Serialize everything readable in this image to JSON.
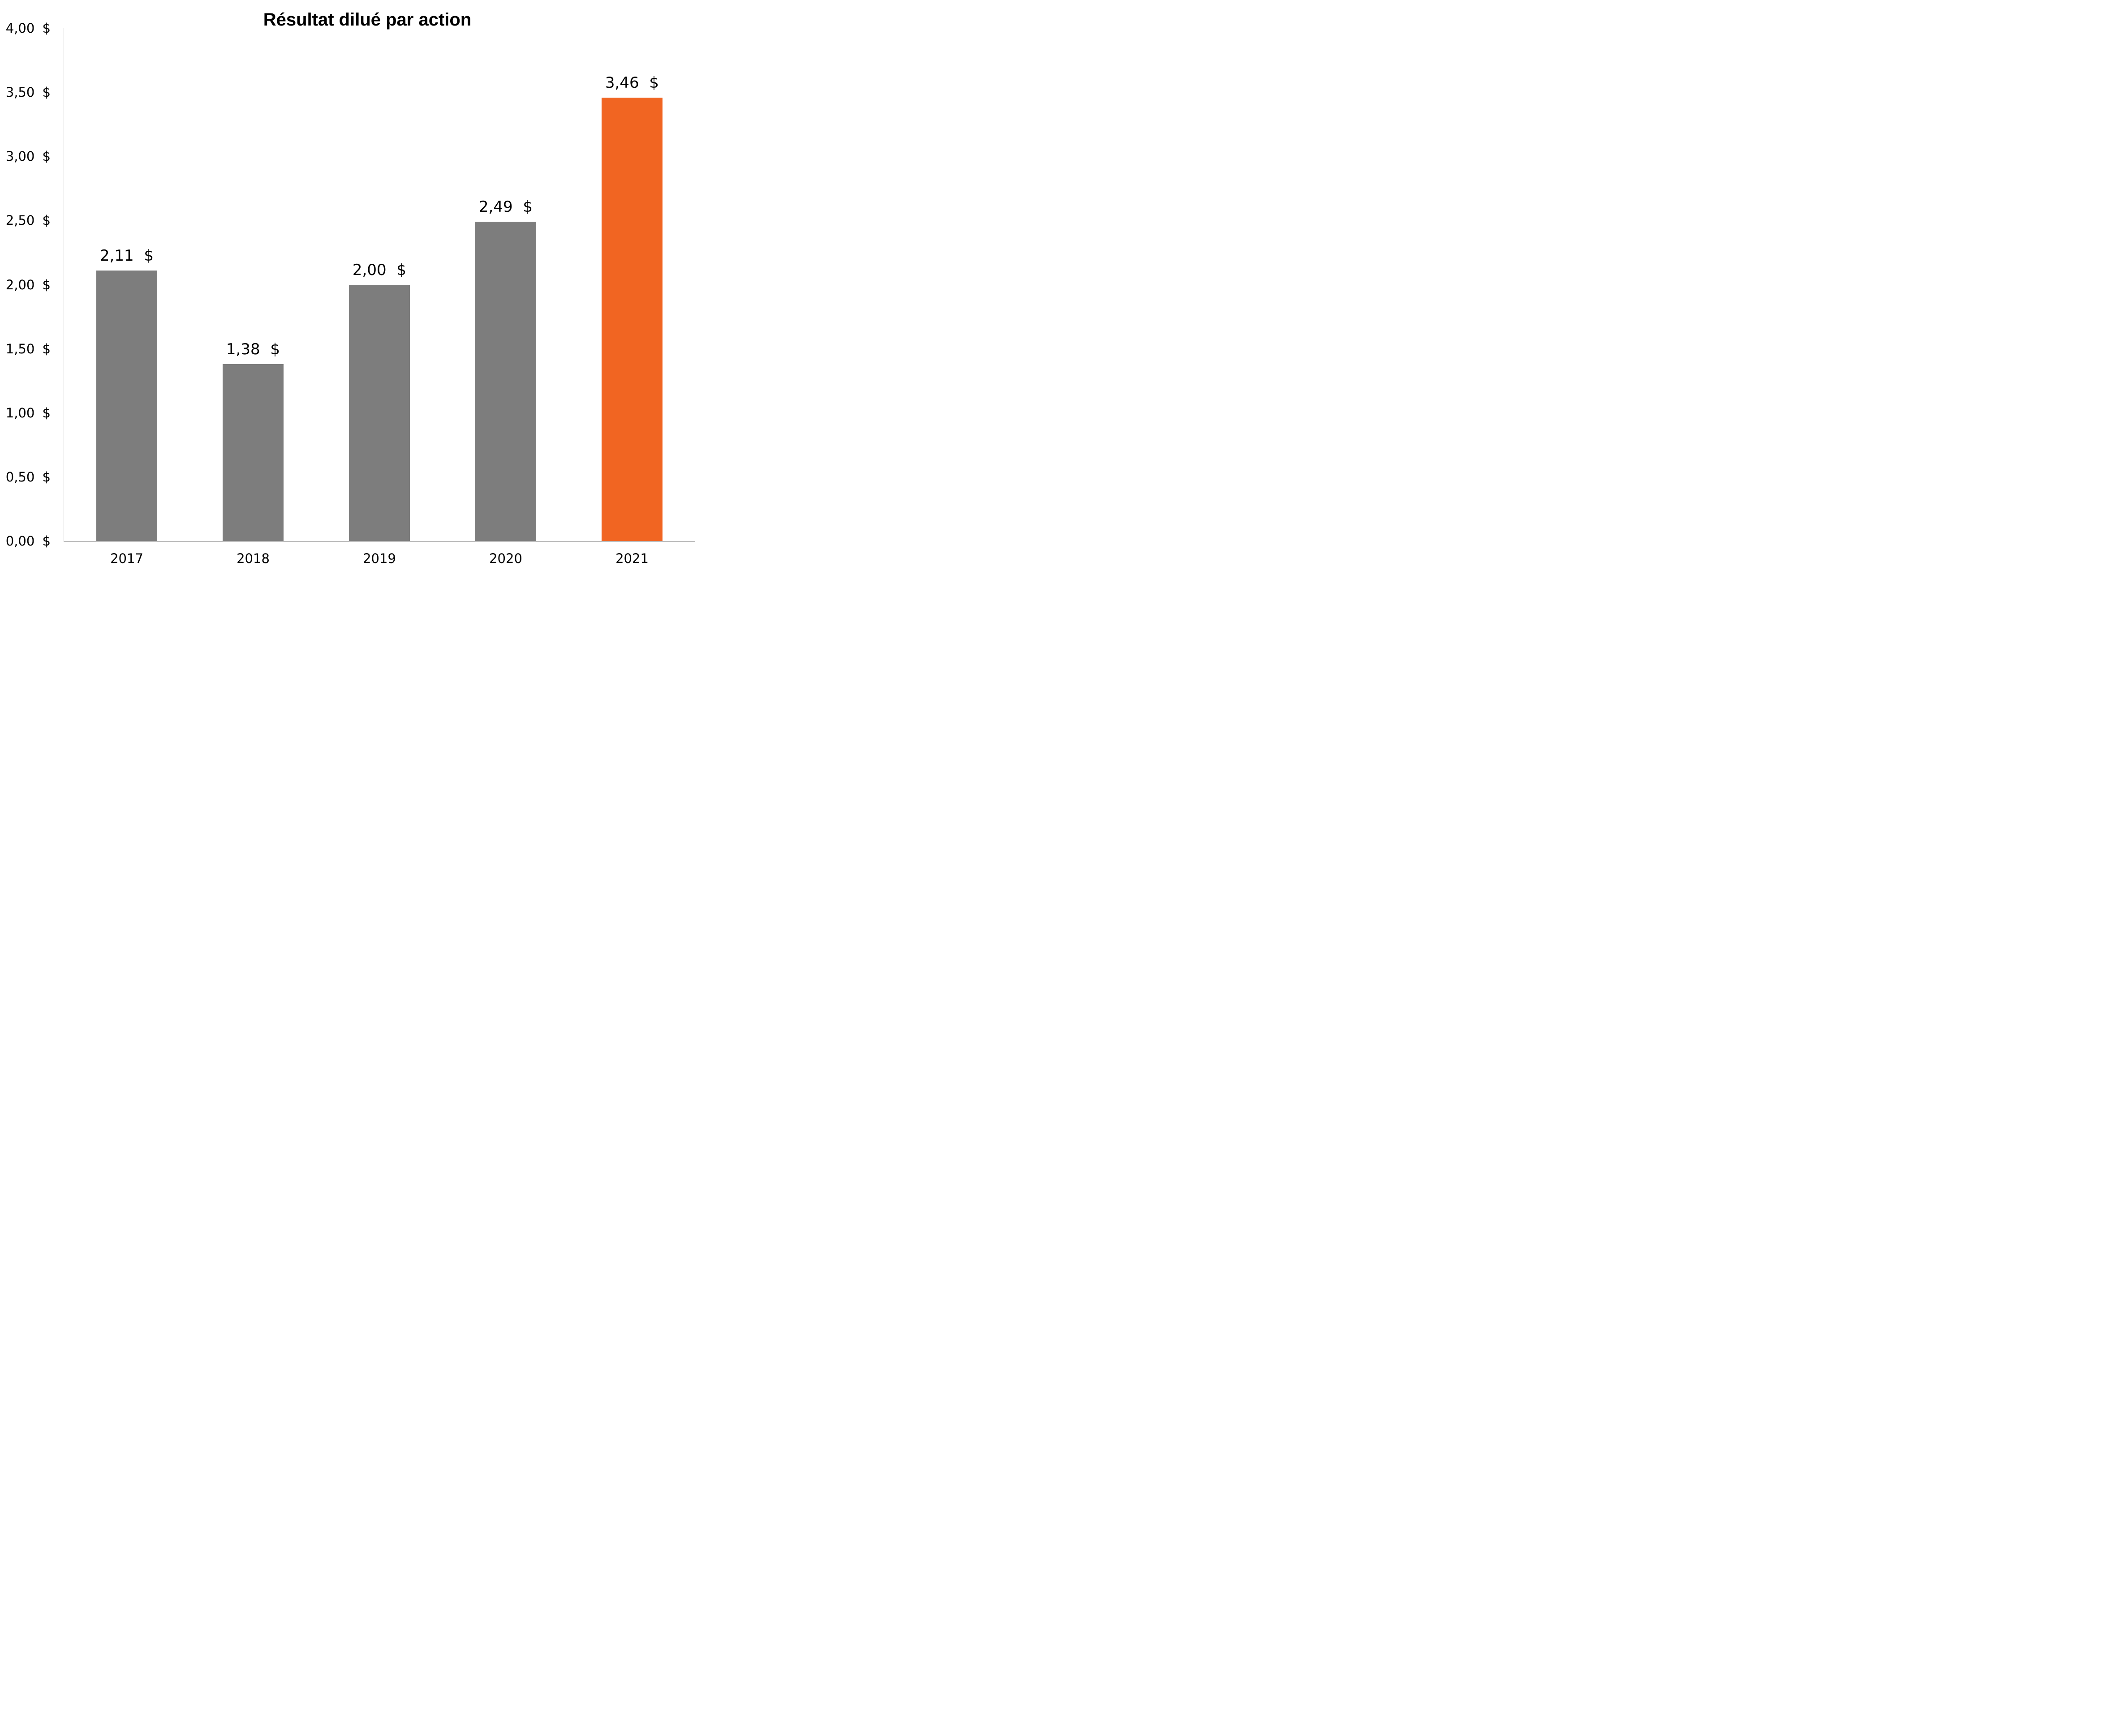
{
  "title": "Résultat dilué par action",
  "chart_data": {
    "type": "bar",
    "title": "Résultat dilué par action",
    "categories": [
      "2017",
      "2018",
      "2019",
      "2020",
      "2021"
    ],
    "values": [
      2.11,
      1.38,
      2.0,
      2.49,
      3.46
    ],
    "value_labels": [
      "2,11 $",
      "1,38 $",
      "2,00 $",
      "2,49 $",
      "3,46 $"
    ],
    "xlabel": "",
    "ylabel": "",
    "ylim": [
      0,
      4
    ],
    "ytick_step": 0.5,
    "ytick_labels": [
      "0,00 $",
      "0,50 $",
      "1,00 $",
      "1,50 $",
      "2,00 $",
      "2,50 $",
      "3,00 $",
      "3,50 $",
      "4,00 $"
    ],
    "grid": false,
    "legend_position": "none",
    "highlight_index": 4,
    "colors": {
      "default_bar": "#7D7D7D",
      "highlight_bar": "#F16522",
      "y_axis_line": "#C9C9C9",
      "x_axis_line": "#BDBDBD",
      "text": "#000000",
      "background": "#FFFFFF"
    }
  }
}
